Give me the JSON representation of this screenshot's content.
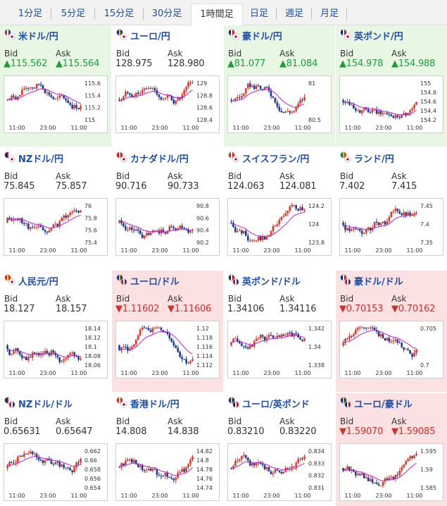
{
  "timeframe_tabs": [
    {
      "label": "1分足",
      "active": false
    },
    {
      "label": "5分足",
      "active": false
    },
    {
      "label": "15分足",
      "active": false
    },
    {
      "label": "30分足",
      "active": false
    },
    {
      "label": "1時間足",
      "active": true
    },
    {
      "label": "日足",
      "active": false
    },
    {
      "label": "週足",
      "active": false
    },
    {
      "label": "月足",
      "active": false
    }
  ],
  "colors": {
    "link_blue": "#1f4fa8",
    "up_green": "#1e9e3a",
    "down_red": "#d0302c",
    "bg_up": "#e7f7e4",
    "bg_down": "#fbe1e1",
    "candle_up": "#e03a2f",
    "candle_down": "#1b3d8f",
    "moving_average": "#c020c8"
  },
  "bid_label": "Bid",
  "ask_label": "Ask",
  "pairs": [
    {
      "name": "米ドル/円",
      "flags": [
        "us-flag-icon",
        "jp-flag-icon"
      ],
      "direction": "up",
      "bid": "▲115.562",
      "ask": "▲115.564",
      "y_ticks": [
        "115.6",
        "115.4",
        "115.2",
        "115"
      ],
      "x_ticks": [
        "11:00",
        "23:00",
        "11:00"
      ]
    },
    {
      "name": "ユーロ/円",
      "flags": [
        "eu-flag-icon",
        "jp-flag-icon"
      ],
      "direction": "none",
      "bid": "128.975",
      "ask": "128.980",
      "y_ticks": [
        "129",
        "128.8",
        "128.6",
        "128.4"
      ],
      "x_ticks": [
        "11:00",
        "23:00",
        "11:00"
      ]
    },
    {
      "name": "豪ドル/円",
      "flags": [
        "au-flag-icon",
        "jp-flag-icon"
      ],
      "direction": "up",
      "bid": "▲81.077",
      "ask": "▲81.084",
      "y_ticks": [
        "81",
        "80.5"
      ],
      "x_ticks": [
        "11:00",
        "23:00",
        "11:00"
      ]
    },
    {
      "name": "英ポンド/円",
      "flags": [
        "gb-flag-icon",
        "jp-flag-icon"
      ],
      "direction": "up",
      "bid": "▲154.978",
      "ask": "▲154.988",
      "y_ticks": [
        "155",
        "154.8",
        "154.6",
        "154.4",
        "154.2"
      ],
      "x_ticks": [
        "11:00",
        "23:00",
        "11:00"
      ]
    },
    {
      "name": "NZドル/円",
      "flags": [
        "nz-flag-icon",
        "jp-flag-icon"
      ],
      "direction": "none",
      "bid": "75.845",
      "ask": "75.857",
      "y_ticks": [
        "76",
        "75.8",
        "75.6",
        "75.4"
      ],
      "x_ticks": [
        "11:00",
        "23:00",
        "11:00"
      ]
    },
    {
      "name": "カナダドル/円",
      "flags": [
        "ca-flag-icon",
        "jp-flag-icon"
      ],
      "direction": "none",
      "bid": "90.716",
      "ask": "90.733",
      "y_ticks": [
        "90.8",
        "90.6",
        "90.4",
        "90.2"
      ],
      "x_ticks": [
        "11:00",
        "23:00",
        "11:00"
      ]
    },
    {
      "name": "スイスフラン/円",
      "flags": [
        "ch-flag-icon",
        "jp-flag-icon"
      ],
      "direction": "none",
      "bid": "124.063",
      "ask": "124.081",
      "y_ticks": [
        "124.2",
        "124",
        "123.8"
      ],
      "x_ticks": [
        "11:00",
        "23:00",
        "11:00"
      ]
    },
    {
      "name": "ランド/円",
      "flags": [
        "za-flag-icon",
        "jp-flag-icon"
      ],
      "direction": "none",
      "bid": "7.402",
      "ask": "7.415",
      "y_ticks": [
        "7.45",
        "7.4",
        "7.35"
      ],
      "x_ticks": [
        "11:00",
        "23:00",
        "11:00"
      ]
    },
    {
      "name": "人民元/円",
      "flags": [
        "cn-flag-icon",
        "jp-flag-icon"
      ],
      "direction": "none",
      "bid": "18.127",
      "ask": "18.157",
      "y_ticks": [
        "18.14",
        "18.12",
        "18.1",
        "18.08",
        "18.06"
      ],
      "x_ticks": [
        "11:00",
        "23:00",
        "11:00"
      ]
    },
    {
      "name": "ユーロ/ドル",
      "flags": [
        "eu-flag-icon",
        "us-flag-icon"
      ],
      "direction": "down",
      "bid": "▼1.11602",
      "ask": "▼1.11606",
      "y_ticks": [
        "1.12",
        "1.118",
        "1.116",
        "1.114",
        "1.112"
      ],
      "x_ticks": [
        "11:00",
        "23:00",
        "11:00"
      ]
    },
    {
      "name": "英ポンド/ドル",
      "flags": [
        "gb-flag-icon",
        "us-flag-icon"
      ],
      "direction": "none",
      "bid": "1.34106",
      "ask": "1.34116",
      "y_ticks": [
        "1.342",
        "1.34",
        "1.338"
      ],
      "x_ticks": [
        "11:00",
        "23:00",
        "11:00"
      ]
    },
    {
      "name": "豪ドル/ドル",
      "flags": [
        "au-flag-icon",
        "us-flag-icon"
      ],
      "direction": "down",
      "bid": "▼0.70153",
      "ask": "▼0.70162",
      "y_ticks": [
        "0.705",
        "0.7"
      ],
      "x_ticks": [
        "11:00",
        "23:00",
        "11:00"
      ]
    },
    {
      "name": "NZドル/ドル",
      "flags": [
        "nz-flag-icon",
        "us-flag-icon"
      ],
      "direction": "none",
      "bid": "0.65631",
      "ask": "0.65647",
      "y_ticks": [
        "0.662",
        "0.66",
        "0.658",
        "0.656",
        "0.654"
      ],
      "x_ticks": [
        "11:00",
        "23:00",
        "11:00"
      ]
    },
    {
      "name": "香港ドル/円",
      "flags": [
        "hk-flag-icon",
        "jp-flag-icon"
      ],
      "direction": "none",
      "bid": "14.808",
      "ask": "14.838",
      "y_ticks": [
        "14.82",
        "14.8",
        "14.78",
        "14.76",
        "14.74"
      ],
      "x_ticks": [
        "11:00",
        "23:00",
        "11:00"
      ]
    },
    {
      "name": "ユーロ/英ポンド",
      "flags": [
        "eu-flag-icon",
        "gb-flag-icon"
      ],
      "direction": "none",
      "bid": "0.83210",
      "ask": "0.83220",
      "y_ticks": [
        "0.834",
        "0.833",
        "0.832",
        "0.831"
      ],
      "x_ticks": [
        "11:00",
        "23:00",
        "11:00"
      ]
    },
    {
      "name": "ユーロ/豪ドル",
      "flags": [
        "eu-flag-icon",
        "au-flag-icon"
      ],
      "direction": "down",
      "bid": "▼1.59070",
      "ask": "▼1.59085",
      "y_ticks": [
        "1.595",
        "1.59",
        "1.585"
      ],
      "x_ticks": [
        "11:00",
        "23:00",
        "11:00"
      ]
    }
  ]
}
